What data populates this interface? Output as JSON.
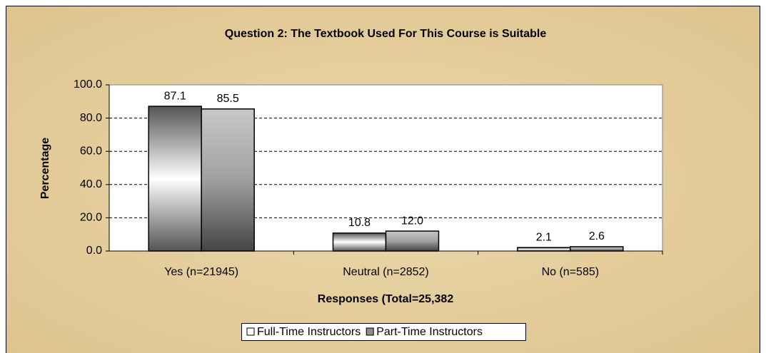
{
  "chart_data": {
    "type": "bar",
    "title": "Question 2:  The Textbook Used For This Course is Suitable",
    "x_label": "Responses (Total=25,382",
    "y_label": "Percentage",
    "categories": [
      "Yes (n=21945)",
      "Neutral (n=2852)",
      "No (n=585)"
    ],
    "series": [
      {
        "name": "Full-Time Instructors",
        "color": "#ffffff",
        "values": [
          87.1,
          10.8,
          2.1
        ],
        "value_labels": [
          "87.1",
          "10.8",
          "2.1"
        ]
      },
      {
        "name": "Part-Time Instructors",
        "color": "#8c8c8c",
        "values": [
          85.5,
          12.0,
          2.6
        ],
        "value_labels": [
          "85.5",
          "12.0",
          "2.6"
        ]
      }
    ],
    "ylim": [
      0,
      100
    ],
    "yticks": [
      {
        "value": 0,
        "label": "0.0"
      },
      {
        "value": 20,
        "label": "20.0"
      },
      {
        "value": 40,
        "label": "40.0"
      },
      {
        "value": 60,
        "label": "60.0"
      },
      {
        "value": 80,
        "label": "80.0"
      },
      {
        "value": 100,
        "label": "100.0"
      }
    ],
    "grid": true,
    "legend": "bottom"
  }
}
